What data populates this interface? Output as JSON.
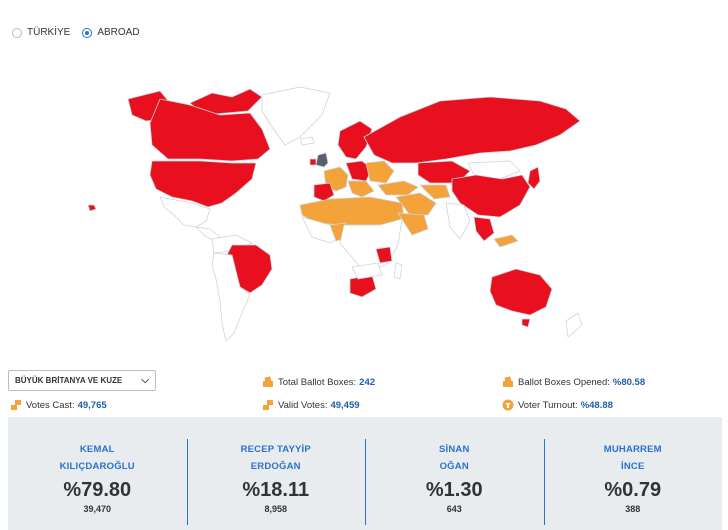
{
  "scope": {
    "options": [
      {
        "label": "TÜRKİYE",
        "selected": false
      },
      {
        "label": "ABROAD",
        "selected": true
      }
    ]
  },
  "map": {
    "colors": {
      "kilicdaroglu": "#e8101e",
      "erdogan": "#f4a23a",
      "selected": "#5a5f6e",
      "no_data": "#ffffff",
      "border": "#cfd3d8"
    }
  },
  "filter": {
    "country": "BÜYÜK BRİTANYA VE KUZE",
    "icon": "chevron-down-icon"
  },
  "stats": {
    "total_ballot_boxes": {
      "label": "Total Ballot Boxes:",
      "value": "242"
    },
    "ballot_boxes_opened": {
      "label": "Ballot Boxes Opened:",
      "value": "%80.58"
    },
    "votes_cast": {
      "label": "Votes Cast:",
      "value": "49,765"
    },
    "valid_votes": {
      "label": "Valid Votes:",
      "value": "49,459"
    },
    "voter_turnout": {
      "label": "Voter Turnout:",
      "value": "%48.88"
    }
  },
  "candidates": [
    {
      "first": "KEMAL",
      "last": "KILIÇDAROĞLU",
      "percent": "%79.80",
      "votes": "39,470"
    },
    {
      "first": "RECEP TAYYİP",
      "last": "ERDOĞAN",
      "percent": "%18.11",
      "votes": "8,958"
    },
    {
      "first": "SİNAN",
      "last": "OĞAN",
      "percent": "%1.30",
      "votes": "643"
    },
    {
      "first": "MUHARREM",
      "last": "İNCE",
      "percent": "%0.79",
      "votes": "388"
    }
  ]
}
